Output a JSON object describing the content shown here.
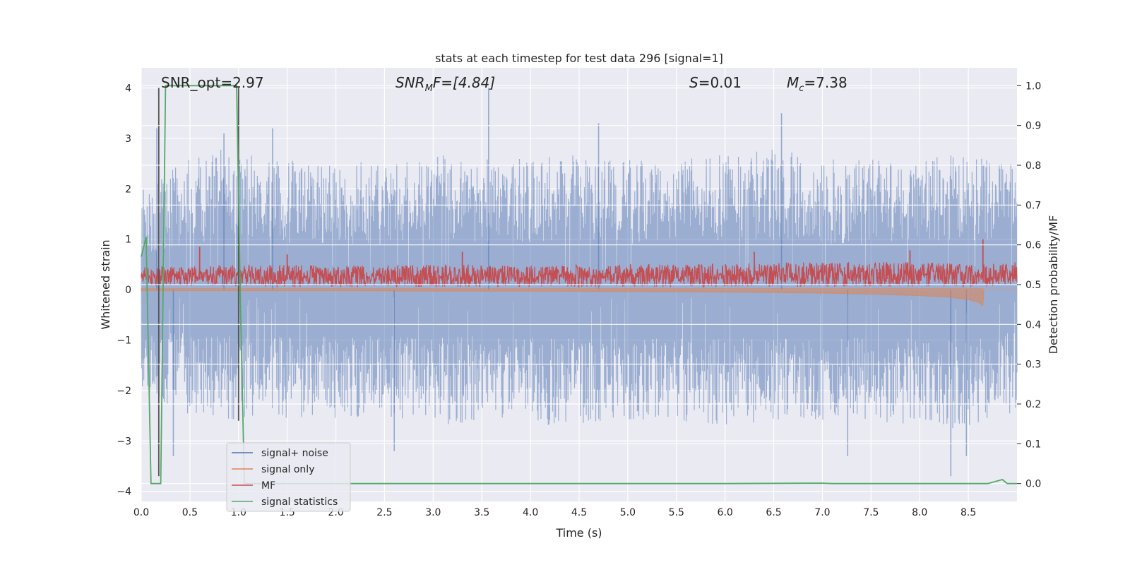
{
  "chart_data": {
    "type": "line",
    "title": "stats at each timestep for test data 296 [signal=1]",
    "xlabel": "Time (s)",
    "ylabel": "Whitened strain",
    "y2label": "Detection probability/MF",
    "xlim": [
      0.0,
      9.0
    ],
    "ylim": [
      -4.2,
      4.4
    ],
    "y2lim": [
      -0.045,
      1.045
    ],
    "x_ticks": [
      "0.0",
      "0.5",
      "1.0",
      "1.5",
      "2.0",
      "2.5",
      "3.0",
      "3.5",
      "4.0",
      "4.5",
      "5.0",
      "5.5",
      "6.0",
      "6.5",
      "7.0",
      "7.5",
      "8.0",
      "8.5"
    ],
    "y_ticks": [
      "−4",
      "−3",
      "−2",
      "−1",
      "0",
      "1",
      "2",
      "3",
      "4"
    ],
    "y2_ticks": [
      "0.0",
      "0.1",
      "0.2",
      "0.3",
      "0.4",
      "0.5",
      "0.6",
      "0.7",
      "0.8",
      "0.9",
      "1.0"
    ],
    "grid": true,
    "legend_position": "lower-left",
    "annotations": {
      "snr_opt": "SNR_opt=2.97",
      "snr_mf_label": "SNR",
      "snr_mf_sub": "M",
      "snr_mf_value": "F=[4.84]",
      "s_var": "S",
      "s_value": "=0.01",
      "mc_var": "M",
      "mc_sub": "c",
      "mc_value": "=7.38"
    },
    "series": [
      {
        "name": "signal+ noise",
        "color": "#4c72b0",
        "axis": "left",
        "envelope": {
          "approximate": true,
          "x": [
            0.0,
            0.5,
            1.0,
            1.5,
            2.0,
            2.5,
            3.0,
            3.5,
            4.0,
            4.5,
            5.0,
            5.5,
            6.0,
            6.5,
            7.0,
            7.5,
            8.0,
            8.5,
            9.0
          ],
          "upper": [
            2.0,
            2.6,
            2.9,
            2.6,
            2.6,
            2.5,
            2.7,
            2.6,
            2.6,
            2.7,
            2.6,
            2.6,
            2.7,
            2.8,
            2.6,
            2.6,
            2.6,
            2.7,
            2.5
          ],
          "lower": [
            -2.0,
            -2.5,
            -2.6,
            -2.6,
            -2.6,
            -2.5,
            -2.7,
            -2.6,
            -2.7,
            -2.7,
            -2.6,
            -2.6,
            -2.7,
            -2.6,
            -2.6,
            -2.6,
            -2.7,
            -2.8,
            -2.4
          ]
        },
        "spikes": [
          {
            "x": 0.16,
            "y": 3.2
          },
          {
            "x": 0.33,
            "y": -3.3
          },
          {
            "x": 0.85,
            "y": 3.1
          },
          {
            "x": 1.35,
            "y": 3.2
          },
          {
            "x": 2.6,
            "y": -3.2
          },
          {
            "x": 3.57,
            "y": 4.0
          },
          {
            "x": 4.7,
            "y": 3.3
          },
          {
            "x": 6.58,
            "y": 3.5
          },
          {
            "x": 7.26,
            "y": -3.3
          },
          {
            "x": 8.32,
            "y": -3.7
          },
          {
            "x": 8.48,
            "y": -3.3
          }
        ]
      },
      {
        "name": "signal only",
        "color": "#dd8452",
        "axis": "left",
        "x": [
          0.0,
          1.0,
          2.0,
          3.0,
          4.0,
          5.0,
          6.0,
          6.5,
          7.0,
          7.5,
          8.0,
          8.3,
          8.5,
          8.6,
          8.65,
          8.66,
          9.0
        ],
        "upper": [
          0.02,
          0.02,
          0.02,
          0.02,
          0.02,
          0.02,
          0.02,
          0.02,
          0.02,
          0.02,
          0.02,
          0.02,
          0.02,
          0.02,
          0.02,
          0.0,
          0.0
        ],
        "lower": [
          -0.02,
          -0.02,
          -0.02,
          -0.03,
          -0.03,
          -0.04,
          -0.05,
          -0.06,
          -0.07,
          -0.09,
          -0.12,
          -0.15,
          -0.2,
          -0.25,
          -0.32,
          0.0,
          0.0
        ]
      },
      {
        "name": "MF",
        "color": "#c44e52",
        "axis": "left",
        "envelope": {
          "approximate": true,
          "x": [
            0.0,
            1.0,
            2.0,
            3.0,
            4.0,
            5.0,
            6.0,
            7.0,
            8.0,
            8.6,
            9.0
          ],
          "upper": [
            0.45,
            0.5,
            0.48,
            0.5,
            0.48,
            0.5,
            0.52,
            0.55,
            0.55,
            0.5,
            0.55
          ],
          "lower": [
            0.05,
            0.0,
            0.0,
            0.0,
            0.0,
            0.0,
            0.0,
            0.0,
            0.0,
            0.0,
            0.05
          ]
        },
        "spikes": [
          {
            "x": 0.6,
            "y": 0.85
          },
          {
            "x": 1.5,
            "y": 0.7
          },
          {
            "x": 3.3,
            "y": 0.75
          },
          {
            "x": 6.3,
            "y": 0.75
          },
          {
            "x": 7.9,
            "y": 0.78
          },
          {
            "x": 8.65,
            "y": 1.0
          }
        ]
      },
      {
        "name": "signal statistics",
        "color": "#55a868",
        "axis": "right",
        "x": [
          0.0,
          0.05,
          0.1,
          0.16,
          0.17,
          0.2,
          0.25,
          0.4,
          0.6,
          0.8,
          0.98,
          1.02,
          1.06,
          1.1,
          2.0,
          4.0,
          6.0,
          7.0,
          7.1,
          8.0,
          8.7,
          8.85,
          8.9,
          9.0
        ],
        "y": [
          0.57,
          0.62,
          0.0,
          0.0,
          0.0,
          0.0,
          1.0,
          1.0,
          1.0,
          1.0,
          1.0,
          0.45,
          0.0,
          0.0,
          0.0,
          0.0,
          0.0,
          0.001,
          0.0,
          0.0,
          0.0,
          0.01,
          0.0,
          0.0
        ]
      }
    ],
    "vertical_markers": {
      "color": "#555555",
      "lines": [
        {
          "x": 0.18,
          "y_from": -3.7,
          "y_to": 4.0
        },
        {
          "x": 1.0,
          "y_from": -2.6,
          "y_to": 4.0
        }
      ]
    }
  }
}
